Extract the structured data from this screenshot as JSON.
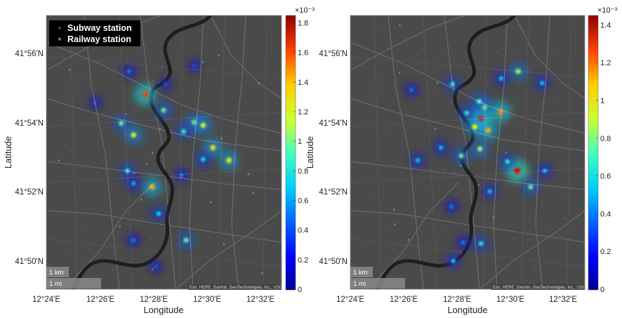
{
  "chart_data": [
    {
      "type": "heatmap",
      "title": "",
      "xlabel": "Longitude",
      "ylabel": "Latitude",
      "x_ticks": [
        "12°24'E",
        "12°26'E",
        "12°28'E",
        "12°30'E",
        "12°32'E"
      ],
      "y_ticks": [
        "41°56'N",
        "41°54'N",
        "41°52'N",
        "41°50'N"
      ],
      "colorbar": {
        "exponent_label": "×10⁻³",
        "ticks": [
          "0",
          "0.2",
          "0.4",
          "0.6",
          "0.8",
          "1",
          "1.2",
          "1.4",
          "1.6",
          "1.8"
        ],
        "range": [
          0,
          1.85
        ],
        "colormap": "jet"
      },
      "legend": {
        "position": "top-left",
        "entries": [
          {
            "label": "Subway station",
            "marker": "×",
            "color": "#cc44cc"
          },
          {
            "label": "Railway station",
            "marker": "×",
            "color": "#dddddd"
          }
        ]
      },
      "scale_bar": [
        "1 km",
        "1 mi"
      ],
      "attribution": "Esri, HERE, Garmin, GeoTechnologies, Inc., USGS",
      "hotspots": [
        {
          "lon": 12.4617,
          "lat": 41.9144,
          "value": 1.5
        },
        {
          "lon": 12.4467,
          "lat": 41.9006,
          "value": 0.9
        },
        {
          "lon": 12.4544,
          "lat": 41.895,
          "value": 1.1
        },
        {
          "lon": 12.4731,
          "lat": 41.9069,
          "value": 0.9
        },
        {
          "lon": 12.4922,
          "lat": 41.9011,
          "value": 1.0
        },
        {
          "lon": 12.4978,
          "lat": 41.8997,
          "value": 1.1
        },
        {
          "lon": 12.4856,
          "lat": 41.8967,
          "value": 0.8
        },
        {
          "lon": 12.5039,
          "lat": 41.8889,
          "value": 1.2
        },
        {
          "lon": 12.5139,
          "lat": 41.8828,
          "value": 1.2
        },
        {
          "lon": 12.4978,
          "lat": 41.8833,
          "value": 0.7
        },
        {
          "lon": 12.4506,
          "lat": 41.8778,
          "value": 0.8
        },
        {
          "lon": 12.4661,
          "lat": 41.87,
          "value": 1.3
        },
        {
          "lon": 12.4544,
          "lat": 41.8717,
          "value": 0.6
        },
        {
          "lon": 12.4844,
          "lat": 41.8756,
          "value": 0.5
        },
        {
          "lon": 12.47,
          "lat": 41.8572,
          "value": 0.7
        },
        {
          "lon": 12.4872,
          "lat": 41.8444,
          "value": 0.9
        },
        {
          "lon": 12.4544,
          "lat": 41.8444,
          "value": 0.5
        },
        {
          "lon": 12.4683,
          "lat": 41.8317,
          "value": 0.4
        },
        {
          "lon": 12.4517,
          "lat": 41.9256,
          "value": 0.5
        },
        {
          "lon": 12.4744,
          "lat": 41.9194,
          "value": 0.4
        },
        {
          "lon": 12.4922,
          "lat": 41.9283,
          "value": 0.4
        },
        {
          "lon": 12.4306,
          "lat": 41.9106,
          "value": 0.4
        }
      ]
    },
    {
      "type": "heatmap",
      "title": "",
      "xlabel": "Longitude",
      "ylabel": "Latitude",
      "x_ticks": [
        "12°24'E",
        "12°26'E",
        "12°28'E",
        "12°30'E",
        "12°32'E"
      ],
      "y_ticks": [
        "41°56'N",
        "41°54'N",
        "41°52'N",
        "41°50'N"
      ],
      "colorbar": {
        "exponent_label": "×10⁻³",
        "ticks": [
          "0",
          "0.2",
          "0.4",
          "0.6",
          "0.8",
          "1",
          "1.2",
          "1.4"
        ],
        "range": [
          0,
          1.45
        ],
        "colormap": "jet"
      },
      "scale_bar": [
        "1 km",
        "1 mi"
      ],
      "attribution": "Esri, HERE, Garmin, GeoTechnologies, Inc., USGS",
      "hotspots": [
        {
          "lon": 12.4939,
          "lat": 41.9061,
          "value": 1.1
        },
        {
          "lon": 12.4817,
          "lat": 41.9028,
          "value": 1.3
        },
        {
          "lon": 12.4861,
          "lat": 41.8972,
          "value": 1.0
        },
        {
          "lon": 12.4778,
          "lat": 41.8989,
          "value": 0.9
        },
        {
          "lon": 12.4839,
          "lat": 41.9083,
          "value": 0.8
        },
        {
          "lon": 12.4806,
          "lat": 41.9111,
          "value": 0.7
        },
        {
          "lon": 12.4728,
          "lat": 41.9056,
          "value": 0.6
        },
        {
          "lon": 12.4811,
          "lat": 41.8883,
          "value": 0.8
        },
        {
          "lon": 12.4694,
          "lat": 41.885,
          "value": 0.7
        },
        {
          "lon": 12.4567,
          "lat": 41.8889,
          "value": 0.5
        },
        {
          "lon": 12.4422,
          "lat": 41.8828,
          "value": 0.5
        },
        {
          "lon": 12.4639,
          "lat": 41.9194,
          "value": 0.6
        },
        {
          "lon": 12.4383,
          "lat": 41.9167,
          "value": 0.4
        },
        {
          "lon": 12.5044,
          "lat": 41.8778,
          "value": 1.3
        },
        {
          "lon": 12.5128,
          "lat": 41.87,
          "value": 0.7
        },
        {
          "lon": 12.4983,
          "lat": 41.8822,
          "value": 0.6
        },
        {
          "lon": 12.5217,
          "lat": 41.8778,
          "value": 0.5
        },
        {
          "lon": 12.505,
          "lat": 41.9256,
          "value": 0.8
        },
        {
          "lon": 12.4944,
          "lat": 41.9222,
          "value": 0.5
        },
        {
          "lon": 12.52,
          "lat": 41.92,
          "value": 0.5
        },
        {
          "lon": 12.4872,
          "lat": 41.8678,
          "value": 0.5
        },
        {
          "lon": 12.4817,
          "lat": 41.8428,
          "value": 0.6
        },
        {
          "lon": 12.4706,
          "lat": 41.8433,
          "value": 0.4
        },
        {
          "lon": 12.4644,
          "lat": 41.8344,
          "value": 0.5
        },
        {
          "lon": 12.4633,
          "lat": 41.8606,
          "value": 0.4
        }
      ]
    }
  ]
}
